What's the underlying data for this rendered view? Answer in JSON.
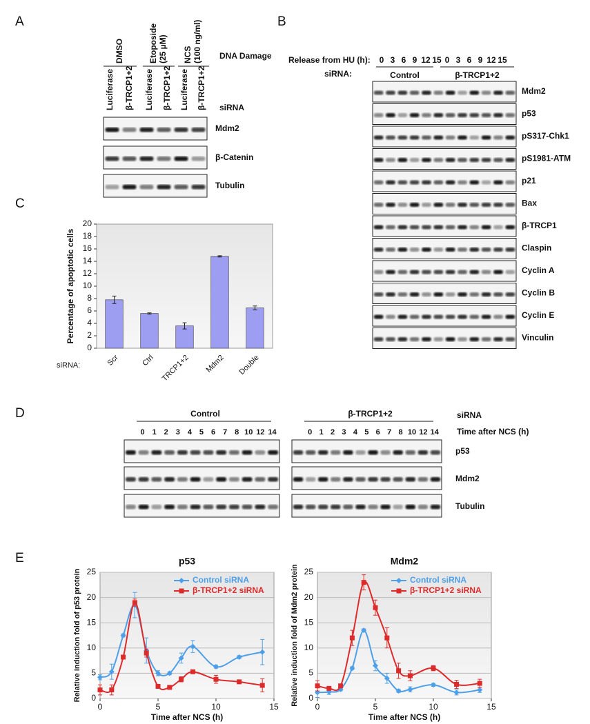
{
  "panel_labels": [
    "A",
    "B",
    "C",
    "D",
    "E"
  ],
  "panel_a": {
    "treatment_header": "DNA Damage",
    "sirna_header": "siRNA",
    "groups": [
      [
        "DMSO"
      ],
      [
        "Etoposide",
        "(25 µM)"
      ],
      [
        "NCS",
        "(100 ng/ml)"
      ]
    ],
    "lanes": [
      "Luciferase",
      "β-TRCP1+2",
      "Luciferase",
      "β-TRCP1+2",
      "Luciferase",
      "β-TRCP1+2"
    ],
    "rows": [
      "Mdm2",
      "β-Catenin",
      "Tubulin"
    ]
  },
  "panel_b": {
    "time_header": "Release from HU (h):",
    "sirna_header": "siRNA:",
    "times": [
      "0",
      "3",
      "6",
      "9",
      "12",
      "15"
    ],
    "groups": [
      "Control",
      "β-TRCP1+2"
    ],
    "rows": [
      "Mdm2",
      "p53",
      "pS317-Chk1",
      "pS1981-ATM",
      "p21",
      "Bax",
      "β-TRCP1",
      "Claspin",
      "Cyclin A",
      "Cyclin B",
      "Cyclin E",
      "Vinculin"
    ]
  },
  "panel_d": {
    "sirna_header": "siRNA",
    "time_header": "Time after NCS (h)",
    "groups": [
      "Control",
      "β-TRCP1+2"
    ],
    "times": [
      "0",
      "1",
      "2",
      "3",
      "4",
      "5",
      "6",
      "7",
      "8",
      "10",
      "12",
      "14"
    ],
    "rows": [
      "p53",
      "Mdm2",
      "Tubulin"
    ]
  },
  "chart_data": [
    {
      "type": "bar",
      "ylabel": "Percentage of apoptotic cells",
      "category_header": "siRNA:",
      "categories": [
        "Scr",
        "Ctrl",
        "TRCP1+2",
        "Mdm2",
        "Double"
      ],
      "values": [
        7.8,
        5.6,
        3.6,
        14.8,
        6.5
      ],
      "errors": [
        0.6,
        0.1,
        0.5,
        0.1,
        0.3
      ],
      "color": "#9d9df2",
      "ylim": [
        0,
        20
      ],
      "yticks": [
        0,
        2,
        4,
        6,
        8,
        10,
        12,
        14,
        16,
        18,
        20
      ]
    },
    {
      "type": "line",
      "title": "p53",
      "ylabel": "Relative induction fold of p53 protein",
      "xlabel": "Time after NCS (h)",
      "x": [
        0,
        1,
        2,
        3,
        4,
        5,
        6,
        7,
        8,
        10,
        12,
        14
      ],
      "xlim": [
        0,
        15
      ],
      "xticks": [
        0,
        5,
        10,
        15
      ],
      "ylim": [
        0,
        25
      ],
      "yticks": [
        0,
        5,
        10,
        15,
        20,
        25
      ],
      "grid": true,
      "legend": "upper right",
      "series": [
        {
          "name": "Control siRNA",
          "color": "#4d9fe8",
          "marker": "diamond",
          "values": [
            4.2,
            5.3,
            12.5,
            18.5,
            9.5,
            5,
            5,
            8,
            10.3,
            6.3,
            8.2,
            9.2
          ],
          "errors": [
            0.5,
            1.5,
            0.3,
            2.5,
            2.5,
            0.5,
            0.3,
            1,
            1.2,
            0.3,
            0.3,
            2.5
          ]
        },
        {
          "name": "β-TRCP1+2 siRNA",
          "color": "#dd2a2a",
          "marker": "square",
          "values": [
            1.7,
            1.7,
            8.2,
            19,
            9,
            2.4,
            2.2,
            3.8,
            5.3,
            3.8,
            3.3,
            2.6
          ],
          "errors": [
            1,
            1,
            0.3,
            0.7,
            0.8,
            0.3,
            0.3,
            0.5,
            0.3,
            0.8,
            0.3,
            1.3
          ]
        }
      ]
    },
    {
      "type": "line",
      "title": "Mdm2",
      "ylabel": "Relative induction fold of Mdm2 protein",
      "xlabel": "Time after NCS (h)",
      "x": [
        0,
        1,
        2,
        3,
        4,
        5,
        6,
        7,
        8,
        10,
        12,
        14
      ],
      "xlim": [
        0,
        15
      ],
      "xticks": [
        0,
        5,
        10,
        15
      ],
      "ylim": [
        0,
        25
      ],
      "yticks": [
        0,
        5,
        10,
        15,
        20,
        25
      ],
      "grid": true,
      "legend": "upper right",
      "series": [
        {
          "name": "Control siRNA",
          "color": "#4d9fe8",
          "marker": "diamond",
          "values": [
            1.2,
            1.3,
            1.8,
            6,
            13.5,
            6.5,
            4,
            1.5,
            1.8,
            2.7,
            1.2,
            1.7
          ],
          "errors": [
            1,
            0.5,
            0.3,
            0.3,
            0.3,
            1,
            1,
            0.3,
            0.5,
            0.3,
            0.5,
            0.5
          ]
        },
        {
          "name": "β-TRCP1+2 siRNA",
          "color": "#dd2a2a",
          "marker": "square",
          "values": [
            2.5,
            2,
            2.5,
            12,
            23,
            18,
            12,
            5.5,
            4.5,
            6,
            2.8,
            3
          ],
          "errors": [
            1,
            0.3,
            0.3,
            1.5,
            1.5,
            1.5,
            2,
            1.5,
            1,
            0.5,
            0.8,
            0.8
          ]
        }
      ]
    }
  ]
}
